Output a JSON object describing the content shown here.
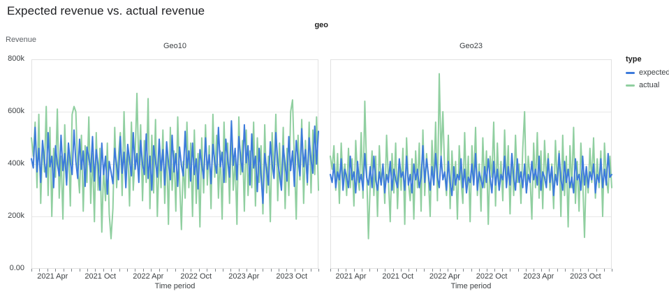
{
  "page": {
    "title": "Expected revenue vs. actual revenue"
  },
  "chart_data": {
    "type": "line",
    "title": "Expected revenue vs. actual revenue",
    "facet_field": "geo",
    "x": {
      "label": "Time period",
      "interval": "weekly",
      "start": "2021 Jan",
      "end": "2023 Dec",
      "months_total": 36,
      "tick_labels": [
        "2021 Apr",
        "2021 Oct",
        "2022 Apr",
        "2022 Oct",
        "2023 Apr",
        "2023 Oct"
      ],
      "tick_month_offsets": [
        3,
        9,
        15,
        21,
        27,
        33
      ]
    },
    "y": {
      "label": "Revenue",
      "unit": "thousands",
      "min": 0,
      "max": 800,
      "tick_values": [
        0,
        200,
        400,
        600,
        800
      ],
      "tick_labels": [
        "0.00",
        "200k",
        "400k",
        "600k",
        "800k"
      ],
      "grid": true
    },
    "legend": {
      "title": "type",
      "position": "right",
      "items": [
        {
          "label": "expected",
          "color": "#3d7bdb"
        },
        {
          "label": "actual",
          "color": "#90cfa0"
        }
      ]
    },
    "colors": {
      "expected": "#3d7bdb",
      "actual": "#90cfa0",
      "grid": "#e8e8e8",
      "frame": "#e1e1e1",
      "tick": "#80868b"
    },
    "facets": [
      {
        "name": "Geo10",
        "series": [
          {
            "name": "expected",
            "values": [
              420,
              385,
              540,
              370,
              460,
              330,
              490,
              415,
              350,
              520,
              390,
              430,
              310,
              470,
              400,
              355,
              510,
              375,
              440,
              320,
              480,
              405,
              360,
              530,
              410,
              345,
              495,
              380,
              450,
              315,
              465,
              425,
              370,
              505,
              335,
              455,
              395,
              300,
              480,
              360,
              430,
              285,
              410,
              370,
              325,
              460,
              395,
              340,
              505,
              365,
              445,
              310,
              475,
              415,
              355,
              520,
              380,
              440,
              330,
              490,
              400,
              360,
              515,
              345,
              430,
              300,
              470,
              410,
              350,
              495,
              375,
              455,
              320,
              485,
              405,
              340,
              510,
              370,
              440,
              315,
              465,
              395,
              355,
              525,
              385,
              450,
              335,
              480,
              360,
              420,
              305,
              455,
              400,
              345,
              500,
              380,
              435,
              325,
              475,
              410,
              365,
              540,
              390,
              445,
              330,
              495,
              415,
              350,
              565,
              395,
              460,
              340,
              505,
              425,
              370,
              550,
              405,
              470,
              320,
              515,
              385,
              430,
              295,
              460,
              355,
              250,
              440,
              380,
              320,
              485,
              400,
              345,
              520,
              410,
              360,
              300,
              470,
              395,
              335,
              505,
              375,
              450,
              315,
              490,
              420,
              355,
              535,
              390,
              455,
              330,
              500,
              415,
              365,
              545,
              400,
              525
            ]
          },
          {
            "name": "actual",
            "values": [
              500,
              430,
              560,
              310,
              590,
              250,
              480,
              370,
              620,
              280,
              540,
              200,
              460,
              350,
              610,
              270,
              430,
              190,
              550,
              330,
              480,
              240,
              590,
              620,
              600,
              380,
              290,
              510,
              220,
              470,
              330,
              580,
              250,
              440,
              180,
              520,
              300,
              460,
              140,
              390,
              260,
              480,
              210,
              115,
              230,
              540,
              310,
              430,
              520,
              280,
              600,
              350,
              470,
              240,
              560,
              300,
              430,
              670,
              380,
              550,
              260,
              490,
              330,
              650,
              230,
              510,
              290,
              570,
              200,
              440,
              310,
              530,
              250,
              480,
              170,
              540,
              300,
              450,
              220,
              580,
              340,
              150,
              410,
              270,
              560,
              310,
              480,
              200,
              530,
              250,
              440,
              160,
              500,
              290,
              550,
              320,
              470,
              230,
              590,
              350,
              510,
              270,
              450,
              190,
              560,
              330,
              480,
              250,
              540,
              300,
              420,
              170,
              580,
              360,
              490,
              220,
              530,
              280,
              450,
              310,
              560,
              240,
              500,
              330,
              470,
              210,
              550,
              290,
              430,
              180,
              520,
              350,
              590,
              260,
              480,
              310,
              540,
              230,
              460,
              280,
              600,
              645,
              420,
              190,
              510,
              340,
              570,
              250,
              490,
              320,
              560,
              290,
              530,
              360,
              580,
              300
            ]
          }
        ]
      },
      {
        "name": "Geo23",
        "series": [
          {
            "name": "expected",
            "values": [
              360,
              330,
              400,
              310,
              370,
              340,
              420,
              300,
              380,
              350,
              310,
              430,
              340,
              370,
              290,
              410,
              330,
              360,
              300,
              440,
              350,
              320,
              390,
              310,
              430,
              340,
              300,
              370,
              320,
              400,
              290,
              360,
              330,
              410,
              300,
              380,
              340,
              310,
              420,
              350,
              370,
              300,
              430,
              320,
              360,
              290,
              400,
              340,
              380,
              310,
              350,
              470,
              330,
              420,
              360,
              300,
              390,
              320,
              440,
              350,
              310,
              430,
              340,
              370,
              300,
              410,
              330,
              280,
              390,
              320,
              360,
              340,
              420,
              310,
              380,
              290,
              350,
              330,
              400,
              320,
              440,
              300,
              370,
              340,
              310,
              390,
              330,
              420,
              350,
              290,
              410,
              320,
              380,
              300,
              360,
              340,
              430,
              310,
              390,
              320,
              440,
              350,
              300,
              420,
              330,
              370,
              310,
              400,
              290,
              360,
              330,
              410,
              340,
              380,
              320,
              430,
              300,
              370,
              350,
              310,
              420,
              330,
              390,
              280,
              360,
              320,
              440,
              340,
              300,
              410,
              330,
              380,
              310,
              350,
              290,
              420,
              340,
              360,
              300,
              430,
              320,
              390,
              310,
              370,
              340,
              400,
              290,
              360,
              330,
              420,
              310,
              380,
              320,
              440,
              350,
              360
            ]
          },
          {
            "name": "actual",
            "values": [
              430,
              380,
              470,
              300,
              440,
              250,
              480,
              330,
              400,
              280,
              460,
              310,
              420,
              240,
              490,
              350,
              300,
              520,
              270,
              640,
              380,
              115,
              330,
              450,
              280,
              430,
              200,
              470,
              320,
              400,
              250,
              510,
              340,
              180,
              440,
              290,
              480,
              230,
              410,
              300,
              460,
              170,
              500,
              330,
              260,
              420,
              190,
              450,
              310,
              480,
              220,
              530,
              280,
              440,
              350,
              200,
              490,
              320,
              560,
              260,
              745,
              430,
              600,
              370,
              280,
              510,
              230,
              450,
              300,
              410,
              190,
              470,
              340,
              250,
              520,
              300,
              430,
              180,
              470,
              330,
              540,
              280,
              400,
              220,
              500,
              310,
              450,
              170,
              430,
              350,
              560,
              240,
              480,
              300,
              410,
              260,
              530,
              320,
              470,
              210,
              440,
              280,
              510,
              330,
              400,
              250,
              460,
              600,
              290,
              430,
              350,
              190,
              480,
              310,
              520,
              270,
              450,
              230,
              490,
              340,
              440,
              300,
              400,
              230,
              490,
              330,
              450,
              200,
              510,
              280,
              430,
              160,
              470,
              310,
              540,
              250,
              410,
              220,
              480,
              340,
              120,
              390,
              290,
              460,
              330,
              500,
              270,
              420,
              310,
              450,
              200,
              480,
              350,
              290,
              430,
              310
            ]
          }
        ]
      }
    ]
  }
}
